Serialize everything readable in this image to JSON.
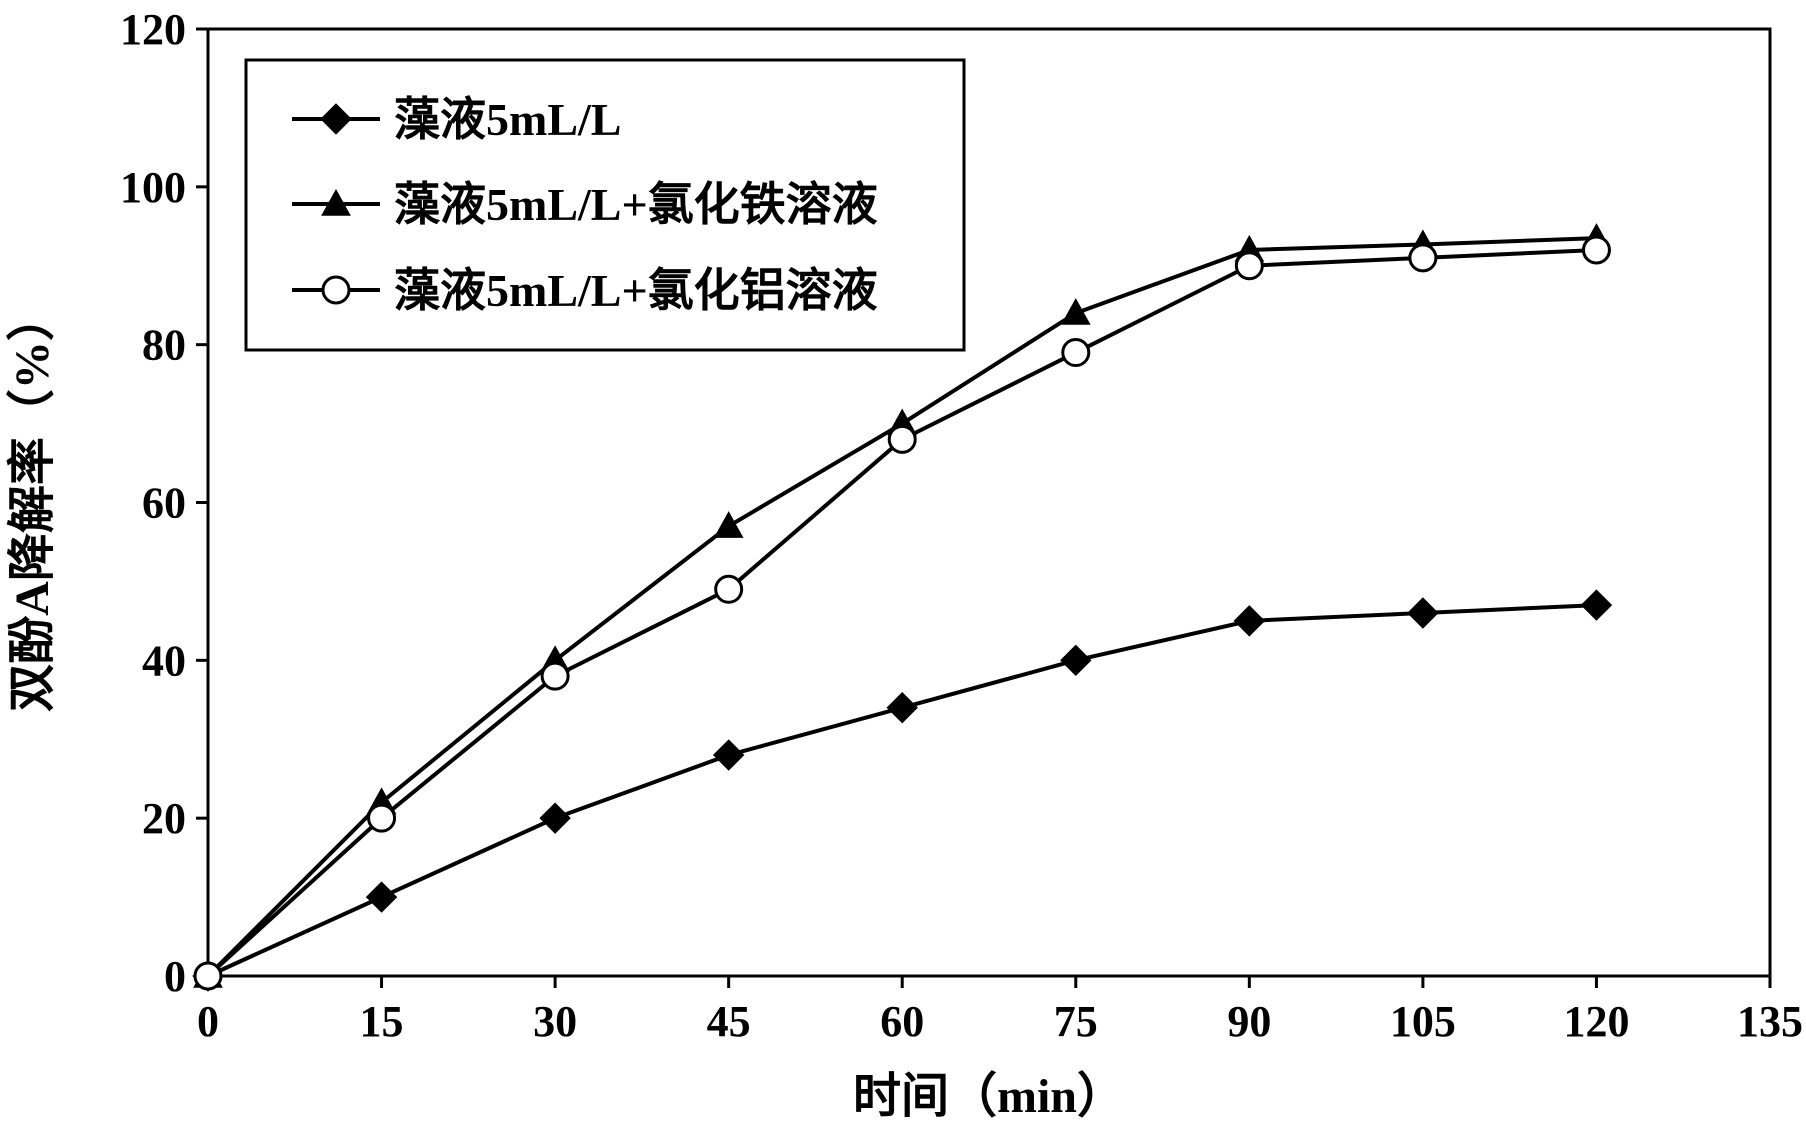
{
  "chart_data": {
    "type": "line",
    "xlabel": "时间（min）",
    "ylabel": "双酚A降解率（%）",
    "xlim": [
      0,
      135
    ],
    "ylim": [
      0,
      120
    ],
    "x_ticks": [
      0,
      15,
      30,
      45,
      60,
      75,
      90,
      105,
      120,
      135
    ],
    "y_ticks": [
      0,
      20,
      40,
      60,
      80,
      100,
      120
    ],
    "grid": false,
    "legend_position": "top-left",
    "x": [
      0,
      15,
      30,
      45,
      60,
      75,
      90,
      105,
      120
    ],
    "series": [
      {
        "name": "藻液5mL/L",
        "marker": "diamond",
        "values": [
          0,
          10,
          20,
          28,
          34,
          40,
          45,
          46,
          47
        ]
      },
      {
        "name": "藻液5mL/L+氯化铁溶液",
        "marker": "triangle",
        "values": [
          0,
          22,
          40,
          57,
          70,
          84,
          92,
          92.7,
          93.5
        ]
      },
      {
        "name": "藻液5mL/L+氯化铝溶液",
        "marker": "circle-open",
        "values": [
          0,
          20,
          38,
          49,
          68,
          79,
          90,
          91,
          92
        ]
      }
    ],
    "colors": {
      "line": "#000000",
      "background": "#ffffff"
    }
  }
}
